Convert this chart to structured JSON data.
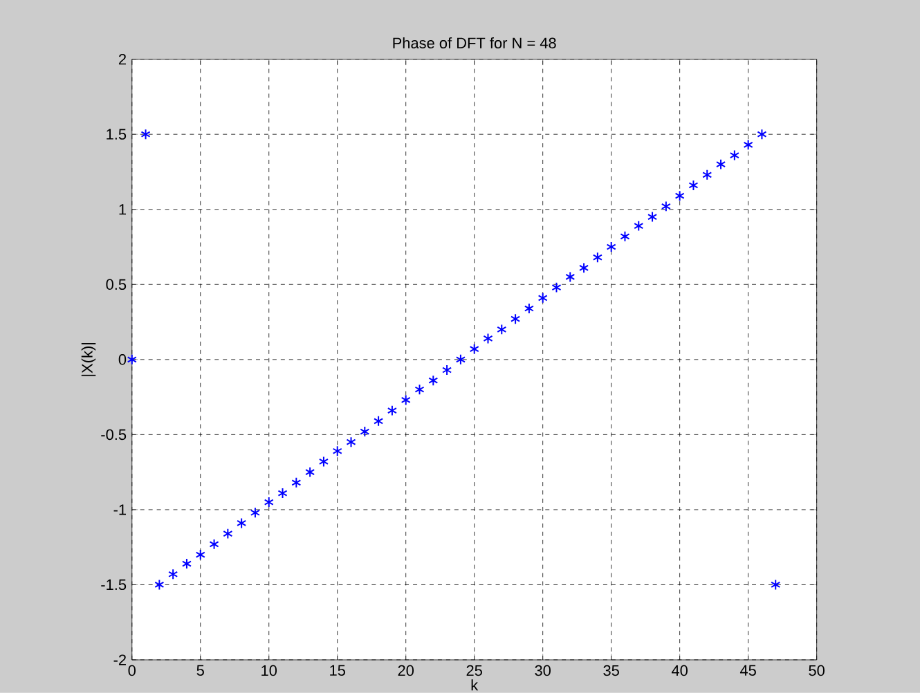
{
  "chart_data": {
    "type": "scatter",
    "title": "Phase of DFT for N = 48",
    "xlabel": "k",
    "ylabel": "|X(k)|",
    "x": [
      0,
      1,
      2,
      3,
      4,
      5,
      6,
      7,
      8,
      9,
      10,
      11,
      12,
      13,
      14,
      15,
      16,
      17,
      18,
      19,
      20,
      21,
      22,
      23,
      24,
      25,
      26,
      27,
      28,
      29,
      30,
      31,
      32,
      33,
      34,
      35,
      36,
      37,
      38,
      39,
      40,
      41,
      42,
      43,
      44,
      45,
      46,
      47
    ],
    "values": [
      0,
      1.5,
      -1.5,
      -1.43,
      -1.36,
      -1.3,
      -1.23,
      -1.16,
      -1.09,
      -1.02,
      -0.95,
      -0.89,
      -0.82,
      -0.75,
      -0.68,
      -0.61,
      -0.55,
      -0.48,
      -0.41,
      -0.34,
      -0.27,
      -0.2,
      -0.14,
      -0.07,
      0,
      0.07,
      0.14,
      0.2,
      0.27,
      0.34,
      0.41,
      0.48,
      0.55,
      0.61,
      0.68,
      0.75,
      0.82,
      0.89,
      0.95,
      1.02,
      1.09,
      1.16,
      1.23,
      1.3,
      1.36,
      1.43,
      1.5,
      -1.5
    ],
    "color": "#0000ff",
    "marker": "cross",
    "grid": true,
    "xlim": [
      0,
      50
    ],
    "xticks": [
      0,
      5,
      10,
      15,
      20,
      25,
      30,
      35,
      40,
      45,
      50
    ],
    "ylim": [
      -2,
      2
    ],
    "yticks": [
      -2,
      -1.5,
      -1,
      -0.5,
      0,
      0.5,
      1,
      1.5,
      2
    ]
  }
}
